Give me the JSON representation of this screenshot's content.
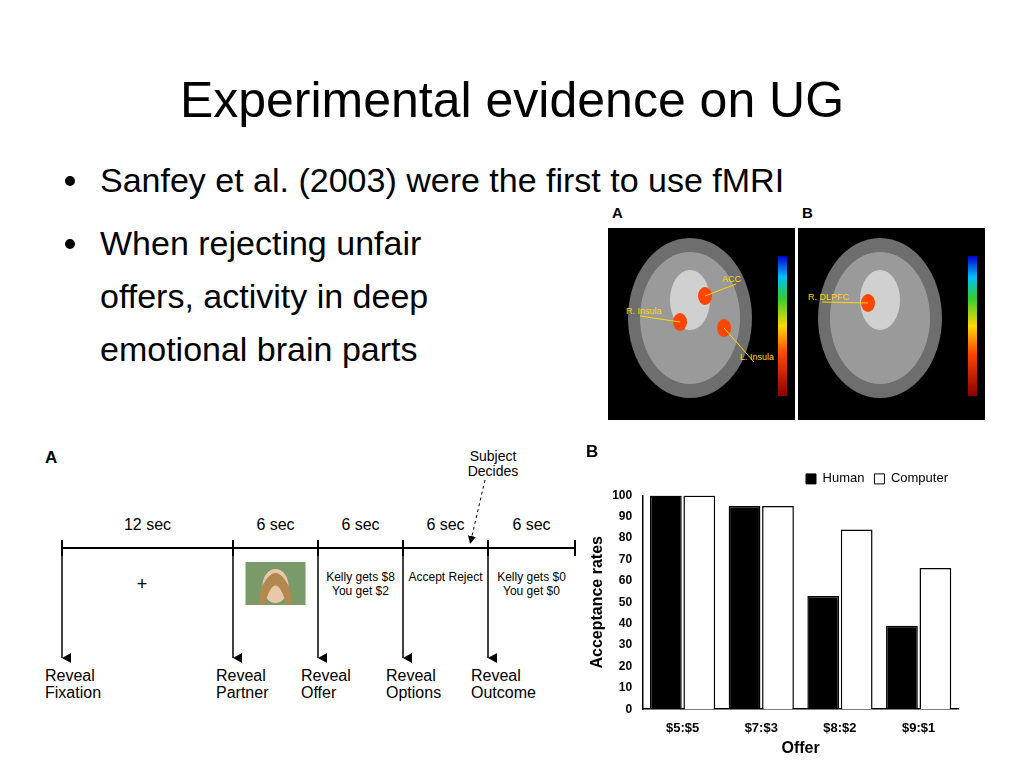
{
  "slide": {
    "title": "Experimental evidence on UG",
    "bullets": [
      [
        "Sanfey et al. (2003) were the first to use fMRI"
      ],
      [
        "When rejecting unfair",
        "offers, activity in deep",
        "emotional brain parts"
      ]
    ]
  },
  "fmri": {
    "panels": [
      {
        "label": "A",
        "regions": [
          "ACC",
          "R. Insula",
          "L. Insula"
        ]
      },
      {
        "label": "B",
        "regions": [
          "R. DLPFC"
        ]
      }
    ]
  },
  "timeline": {
    "label": "A",
    "annotation": [
      "Subject",
      "Decides"
    ],
    "steps": [
      {
        "duration": "12 sec",
        "event": [
          "Reveal",
          "Fixation"
        ],
        "screen": [
          "+"
        ]
      },
      {
        "duration": "6 sec",
        "event": [
          "Reveal",
          "Partner"
        ],
        "screen": []
      },
      {
        "duration": "6 sec",
        "event": [
          "Reveal",
          "Offer"
        ],
        "screen": [
          "Kelly gets $8",
          "You get $2"
        ]
      },
      {
        "duration": "6 sec",
        "event": [
          "Reveal",
          "Options"
        ],
        "screen": [
          "Accept Reject"
        ]
      },
      {
        "duration": "6 sec",
        "event": [
          "Reveal",
          "Outcome"
        ],
        "screen": [
          "Kelly gets $0",
          "You get $0"
        ]
      }
    ]
  },
  "chart_data": {
    "type": "bar",
    "title": "B",
    "x_label": "Offer",
    "y_label": "Acceptance rates",
    "categories": [
      "$5:$5",
      "$7:$3",
      "$8:$2",
      "$9:$1"
    ],
    "series": [
      {
        "name": "Human",
        "color": "#000000",
        "values": [
          100,
          95,
          53,
          39
        ]
      },
      {
        "name": "Computer",
        "color": "#ffffff",
        "values": [
          100,
          95,
          84,
          66
        ]
      }
    ],
    "ylim": [
      0,
      100
    ],
    "yticks": [
      0,
      10,
      20,
      30,
      40,
      50,
      60,
      70,
      80,
      90,
      100
    ],
    "legend": "upper right",
    "grid": false
  }
}
